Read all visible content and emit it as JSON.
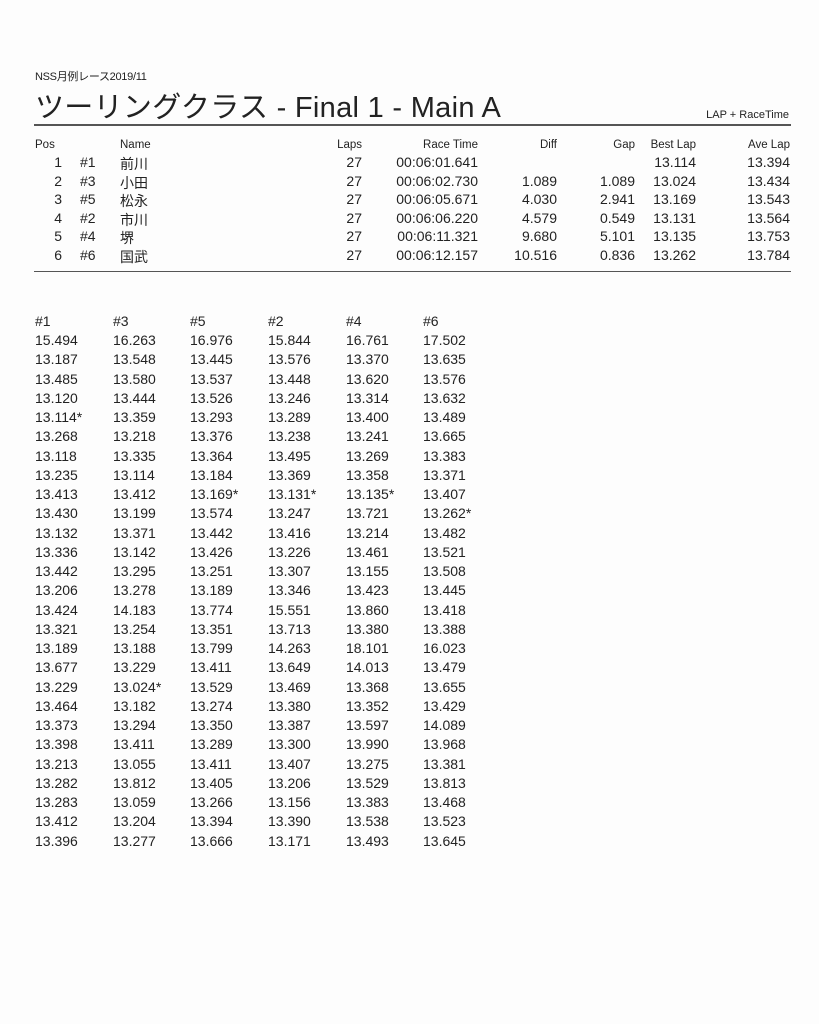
{
  "header": {
    "event": "NSS月例レース2019/11",
    "title": "ツーリングクラス  -  Final 1  -  Main A",
    "mode": "LAP + RaceTime"
  },
  "results": {
    "columns": [
      "Pos",
      "",
      "Name",
      "Laps",
      "Race Time",
      "Diff",
      "Gap",
      "Best Lap",
      "Ave Lap"
    ],
    "rows": [
      [
        "1",
        "#1",
        "前川",
        "27",
        "00:06:01.641",
        "",
        "",
        "13.114",
        "13.394"
      ],
      [
        "2",
        "#3",
        "小田",
        "27",
        "00:06:02.730",
        "1.089",
        "1.089",
        "13.024",
        "13.434"
      ],
      [
        "3",
        "#5",
        "松永",
        "27",
        "00:06:05.671",
        "4.030",
        "2.941",
        "13.169",
        "13.543"
      ],
      [
        "4",
        "#2",
        "市川",
        "27",
        "00:06:06.220",
        "4.579",
        "0.549",
        "13.131",
        "13.564"
      ],
      [
        "5",
        "#4",
        "堺",
        "27",
        "00:06:11.321",
        "9.680",
        "5.101",
        "13.135",
        "13.753"
      ],
      [
        "6",
        "#6",
        "国武",
        "27",
        "00:06:12.157",
        "10.516",
        "0.836",
        "13.262",
        "13.784"
      ]
    ]
  },
  "laps": {
    "columns": [
      "#1",
      "#3",
      "#5",
      "#2",
      "#4",
      "#6"
    ],
    "rows": [
      [
        "15.494",
        "16.263",
        "16.976",
        "15.844",
        "16.761",
        "17.502"
      ],
      [
        "13.187",
        "13.548",
        "13.445",
        "13.576",
        "13.370",
        "13.635"
      ],
      [
        "13.485",
        "13.580",
        "13.537",
        "13.448",
        "13.620",
        "13.576"
      ],
      [
        "13.120",
        "13.444",
        "13.526",
        "13.246",
        "13.314",
        "13.632"
      ],
      [
        "13.114*",
        "13.359",
        "13.293",
        "13.289",
        "13.400",
        "13.489"
      ],
      [
        "13.268",
        "13.218",
        "13.376",
        "13.238",
        "13.241",
        "13.665"
      ],
      [
        "13.118",
        "13.335",
        "13.364",
        "13.495",
        "13.269",
        "13.383"
      ],
      [
        "13.235",
        "13.114",
        "13.184",
        "13.369",
        "13.358",
        "13.371"
      ],
      [
        "13.413",
        "13.412",
        "13.169*",
        "13.131*",
        "13.135*",
        "13.407"
      ],
      [
        "13.430",
        "13.199",
        "13.574",
        "13.247",
        "13.721",
        "13.262*"
      ],
      [
        "13.132",
        "13.371",
        "13.442",
        "13.416",
        "13.214",
        "13.482"
      ],
      [
        "13.336",
        "13.142",
        "13.426",
        "13.226",
        "13.461",
        "13.521"
      ],
      [
        "13.442",
        "13.295",
        "13.251",
        "13.307",
        "13.155",
        "13.508"
      ],
      [
        "13.206",
        "13.278",
        "13.189",
        "13.346",
        "13.423",
        "13.445"
      ],
      [
        "13.424",
        "14.183",
        "13.774",
        "15.551",
        "13.860",
        "13.418"
      ],
      [
        "13.321",
        "13.254",
        "13.351",
        "13.713",
        "13.380",
        "13.388"
      ],
      [
        "13.189",
        "13.188",
        "13.799",
        "14.263",
        "18.101",
        "16.023"
      ],
      [
        "13.677",
        "13.229",
        "13.411",
        "13.649",
        "14.013",
        "13.479"
      ],
      [
        "13.229",
        "13.024*",
        "13.529",
        "13.469",
        "13.368",
        "13.655"
      ],
      [
        "13.464",
        "13.182",
        "13.274",
        "13.380",
        "13.352",
        "13.429"
      ],
      [
        "13.373",
        "13.294",
        "13.350",
        "13.387",
        "13.597",
        "14.089"
      ],
      [
        "13.398",
        "13.411",
        "13.289",
        "13.300",
        "13.990",
        "13.968"
      ],
      [
        "13.213",
        "13.055",
        "13.411",
        "13.407",
        "13.275",
        "13.381"
      ],
      [
        "13.282",
        "13.812",
        "13.405",
        "13.206",
        "13.529",
        "13.813"
      ],
      [
        "13.283",
        "13.059",
        "13.266",
        "13.156",
        "13.383",
        "13.468"
      ],
      [
        "13.412",
        "13.204",
        "13.394",
        "13.390",
        "13.538",
        "13.523"
      ],
      [
        "13.396",
        "13.277",
        "13.666",
        "13.171",
        "13.493",
        "13.645"
      ]
    ]
  }
}
